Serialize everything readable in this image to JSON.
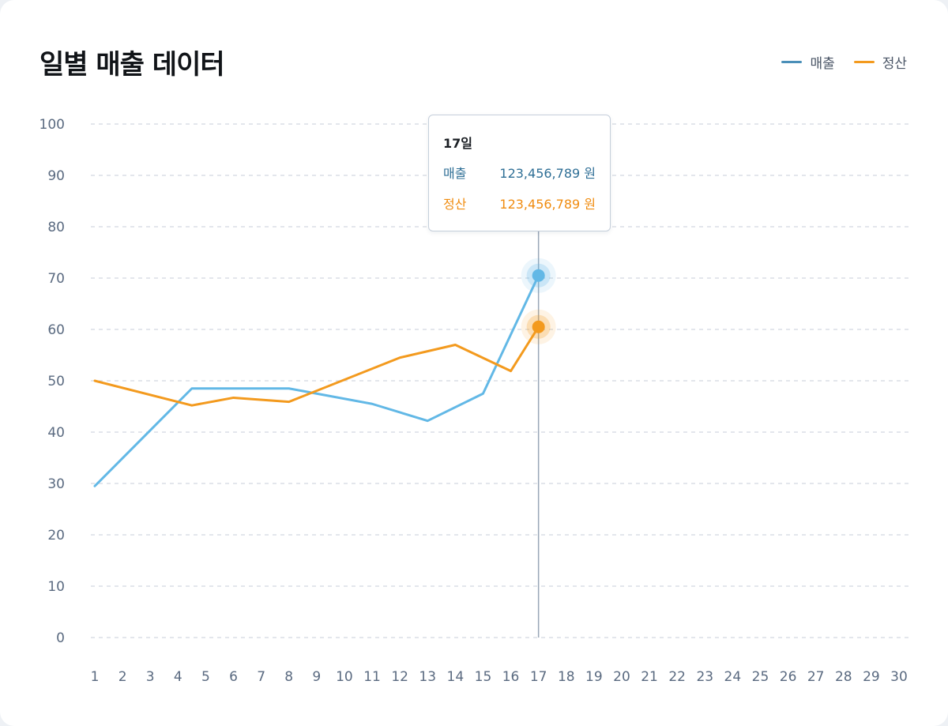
{
  "title": "일별 매출 데이터",
  "legend": [
    {
      "label": "매출",
      "color": "#4a8fb8"
    },
    {
      "label": "정산",
      "color": "#f39a1e"
    }
  ],
  "tooltip": {
    "day": "17일",
    "rows": [
      {
        "label": "매출",
        "value": "123,456,789 원",
        "color": "#2f6f96"
      },
      {
        "label": "정산",
        "value": "123,456,789 원",
        "color": "#f08c10"
      }
    ]
  },
  "colors": {
    "revenue_line": "#62b8e6",
    "settlement_line": "#f39a1e",
    "grid": "#d2d8e0",
    "axis_text": "#5a6a80",
    "crosshair": "#98a6b6"
  },
  "chart_data": {
    "type": "line",
    "title": "일별 매출 데이터",
    "xlabel": "",
    "ylabel": "",
    "ylim": [
      0,
      100
    ],
    "yticks": [
      0,
      10,
      20,
      30,
      40,
      50,
      60,
      70,
      80,
      90,
      100
    ],
    "categories": [
      "1",
      "2",
      "3",
      "4",
      "5",
      "6",
      "7",
      "8",
      "9",
      "10",
      "11",
      "12",
      "13",
      "14",
      "15",
      "16",
      "17",
      "18",
      "19",
      "20",
      "21",
      "22",
      "23",
      "24",
      "25",
      "26",
      "27",
      "28",
      "29",
      "30"
    ],
    "grid": true,
    "legend_position": "top-right",
    "highlight_index": 16,
    "series": [
      {
        "name": "매출",
        "color": "#62b8e6",
        "x": [
          1,
          4.5,
          8,
          11,
          13,
          15,
          17
        ],
        "values": [
          29.5,
          48.5,
          48.5,
          45.5,
          42.2,
          47.5,
          70.5
        ]
      },
      {
        "name": "정산",
        "color": "#f39a1e",
        "x": [
          1,
          4.5,
          6,
          8,
          12,
          14,
          16,
          17
        ],
        "values": [
          50,
          45.2,
          46.7,
          45.9,
          54.5,
          57,
          51.9,
          60.5
        ]
      }
    ]
  }
}
